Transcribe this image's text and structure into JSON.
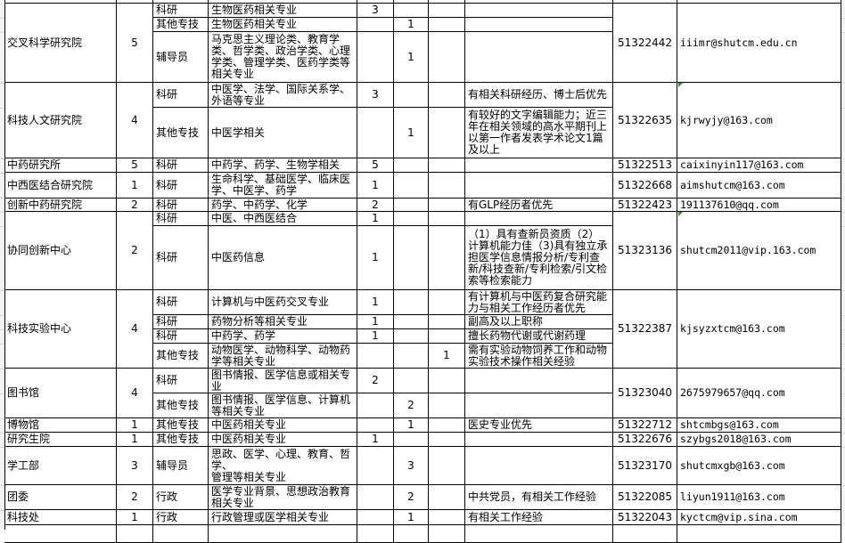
{
  "flag_color": "#1a9a1a",
  "departments": [
    {
      "name": "交叉科学研究院",
      "count": "5",
      "phone": "51322442",
      "email": "iiimr@shutcm.edu.cn",
      "positions": [
        {
          "category": "科研",
          "major": "生物医药相关专业",
          "n1": "3",
          "n2": "",
          "n3": "",
          "requirement": ""
        },
        {
          "category": "其他专技",
          "major": "生物医药相关专业",
          "n1": "",
          "n2": "1",
          "n3": "",
          "requirement": ""
        },
        {
          "category": "辅导员",
          "major": "马克思主义理论类、教育学类、哲学类、政治学类、心理学类、管理学类、医药学类等相关专业",
          "n1": "",
          "n2": "1",
          "n3": "",
          "requirement": ""
        }
      ]
    },
    {
      "name": "科技人文研究院",
      "count": "4",
      "phone": "51322635",
      "email": "kjrwyjy@163.com",
      "flag": true,
      "positions": [
        {
          "category": "科研",
          "major": "中医学、法学、国际关系学、外语等专业",
          "n1": "3",
          "n2": "",
          "n3": "",
          "requirement": "有相关科研经历、博士后优先"
        },
        {
          "category": "其他专技",
          "major": "中医学相关",
          "n1": "",
          "n2": "1",
          "n3": "",
          "requirement": "有较好的文字编辑能力；近三年在相关领域的高水平期刊上以第一作者发表学术论文1篇及以上"
        }
      ]
    },
    {
      "name": "中药研究所",
      "count": "5",
      "phone": "51322513",
      "email": "caixinyin117@163.com",
      "positions": [
        {
          "category": "科研",
          "major": "中药学、药学、生物学相关",
          "n1": "5",
          "n2": "",
          "n3": "",
          "requirement": ""
        }
      ]
    },
    {
      "name": "中西医结合研究院",
      "count": "1",
      "phone": "51322668",
      "email": "aimshutcm@163.com",
      "positions": [
        {
          "category": "科研",
          "major": "生命科学、基础医学、临床医学、中医学、药学",
          "n1": "1",
          "n2": "",
          "n3": "",
          "requirement": ""
        }
      ]
    },
    {
      "name": "创新中药研究院",
      "count": "2",
      "phone": "51322423",
      "email": "191137610@qq.com",
      "positions": [
        {
          "category": "科研",
          "major": "药学、中药学、化学",
          "n1": "2",
          "n2": "",
          "n3": "",
          "requirement": "有GLP经历者优先"
        }
      ]
    },
    {
      "name": "协同创新中心",
      "count": "2",
      "phone": "51323136",
      "email": "shutcm2011@vip.163.com",
      "flag": true,
      "positions": [
        {
          "category": "科研",
          "major": "中医、中西医结合",
          "n1": "1",
          "n2": "",
          "n3": "",
          "requirement": ""
        },
        {
          "category": "科研",
          "major": "中医药信息",
          "n1": "1",
          "n2": "",
          "n3": "",
          "requirement": "（1）具有查新员资质（2）计算机能力佳（3)具有独立承担医学信息情报分析/专利查新/科技查新/专利检索/引文检索等检索能力"
        }
      ]
    },
    {
      "name": "科技实验中心",
      "count": "4",
      "phone": "51322387",
      "email": "kjsyzxtcm@163.com",
      "positions": [
        {
          "category": "科研",
          "major": "计算机与中医药交叉专业",
          "n1": "1",
          "n2": "",
          "n3": "",
          "requirement": "有计算机与中医药复合研究能力与相关工作经历者优先"
        },
        {
          "category": "科研",
          "major": "药物分析等相关专业",
          "n1": "1",
          "n2": "",
          "n3": "",
          "requirement": "副高及以上职称"
        },
        {
          "category": "科研",
          "major": "中药学、药学",
          "n1": "1",
          "n2": "",
          "n3": "",
          "requirement": "擅长药物代谢或代谢药理"
        },
        {
          "category": "其他专技",
          "major": "动物医学、动物科学、动物药学等相关专业",
          "n1": "",
          "n2": "",
          "n3": "1",
          "requirement": "需有实验动物饲养工作和动物实验技术操作相关经验"
        }
      ]
    },
    {
      "name": "图书馆",
      "count": "4",
      "phone": "51323040",
      "email": "2675979657@qq.com",
      "positions": [
        {
          "category": "科研",
          "major": "图书情报、医学信息或相关专业",
          "n1": "2",
          "n2": "",
          "n3": "",
          "requirement": ""
        },
        {
          "category": "其他专技",
          "major": "图书情报、医学信息、计算机等相关专业",
          "n1": "",
          "n2": "2",
          "n3": "",
          "requirement": ""
        }
      ]
    },
    {
      "name": "博物馆",
      "count": "1",
      "phone": "51322712",
      "email": "shtcmbgs@163.com",
      "positions": [
        {
          "category": "其他专技",
          "major": "中医药相关专业",
          "n1": "",
          "n2": "1",
          "n3": "",
          "requirement": "医史专业优先"
        }
      ]
    },
    {
      "name": "研究生院",
      "count": "1",
      "phone": "51322676",
      "email": "szybgs2018@163.com",
      "positions": [
        {
          "category": "其他专技",
          "major": "中医药相关专业",
          "n1": "1",
          "n2": "",
          "n3": "",
          "requirement": ""
        }
      ]
    },
    {
      "name": "学工部",
      "count": "3",
      "phone": "51323170",
      "email": "shutcmxgb@163.com",
      "positions": [
        {
          "category": "辅导员",
          "major": "思政、医学、心理、教育、哲学、\n管理等相关专业",
          "n1": "",
          "n2": "3",
          "n3": "",
          "requirement": ""
        }
      ]
    },
    {
      "name": "团委",
      "count": "2",
      "phone": "51322085",
      "email": "liyun1911@163.com",
      "positions": [
        {
          "category": "行政",
          "major": "医学专业背景、思想政治教育相关专业",
          "n1": "",
          "n2": "2",
          "n3": "",
          "requirement": "中共党员，有相关工作经验"
        }
      ]
    },
    {
      "name": "科技处",
      "count": "1",
      "phone": "51322043",
      "email": "kyctcm@vip.sina.com",
      "positions": [
        {
          "category": "行政",
          "major": "行政管理或医学相关专业",
          "n1": "",
          "n2": "1",
          "n3": "",
          "requirement": "有相关工作经验"
        }
      ]
    }
  ]
}
